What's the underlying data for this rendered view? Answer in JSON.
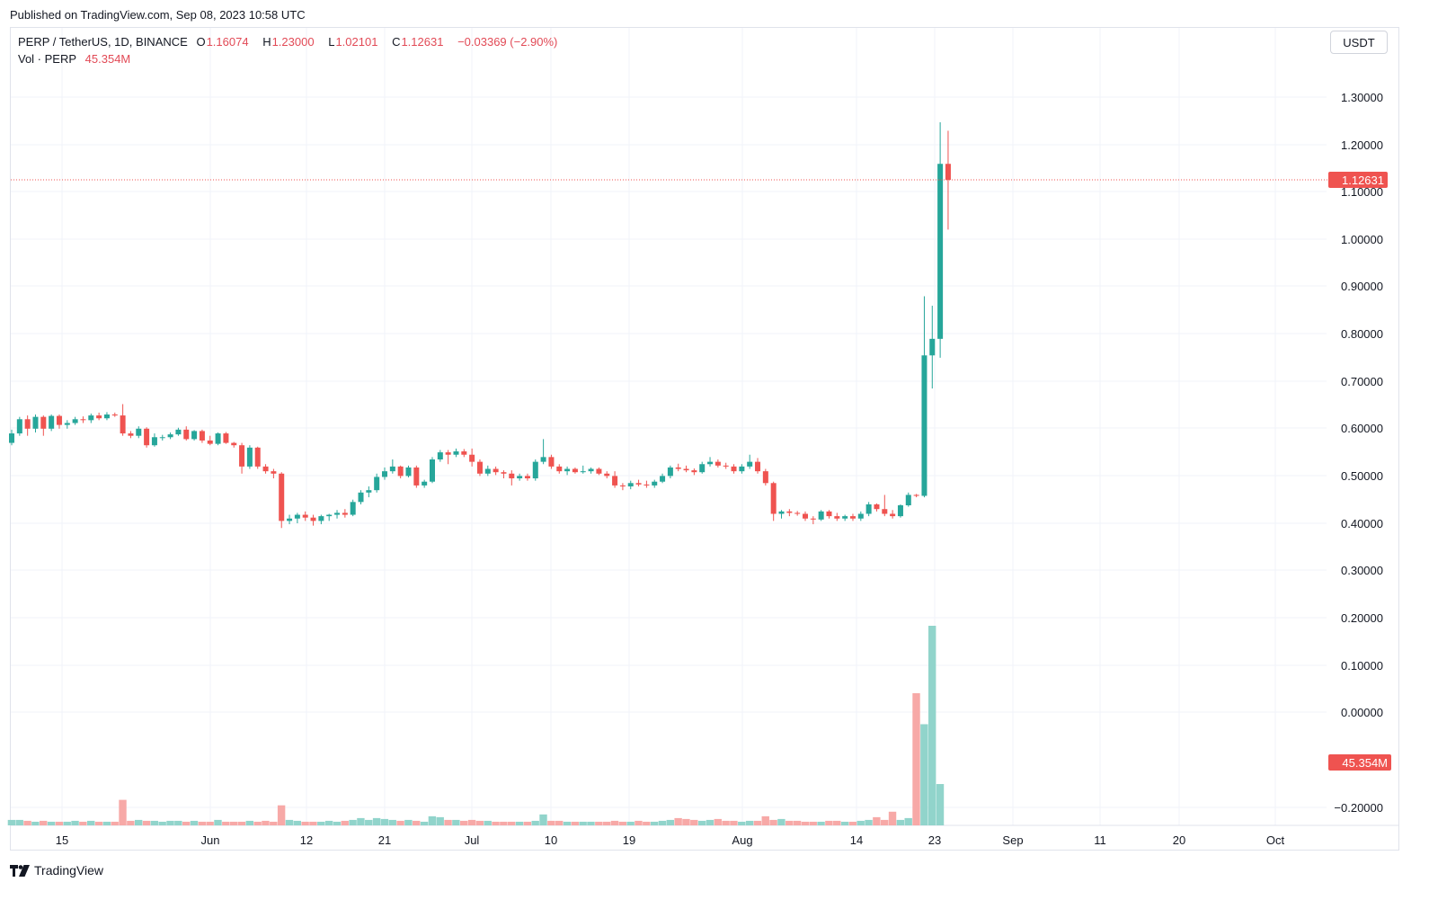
{
  "header": {
    "published": "Published on TradingView.com, Sep 08, 2023 10:58 UTC"
  },
  "legend": {
    "symbol": "PERP / TetherUS, 1D, BINANCE",
    "open_key": "O",
    "open": "1.16074",
    "high_key": "H",
    "high": "1.23000",
    "low_key": "L",
    "low": "1.02101",
    "close_key": "C",
    "close": "1.12631",
    "change": "−0.03369 (−2.90%)",
    "vol_label": "Vol · PERP",
    "vol_value": "45.354M"
  },
  "currency": "USDT",
  "brand": "TradingView",
  "colors": {
    "up": "#26a69a",
    "down": "#ef5350",
    "up_vol": "#91d4cb",
    "down_vol": "#f7a9a7",
    "last_badge": "#ef5350"
  },
  "chart_data": {
    "type": "candlestick",
    "timeframe": "1D",
    "y_ticks": [
      "1.30000",
      "1.20000",
      "1.10000",
      "1.00000",
      "0.90000",
      "0.80000",
      "0.70000",
      "0.60000",
      "0.50000",
      "0.40000",
      "0.30000",
      "0.20000",
      "0.10000",
      "0.00000",
      "−0.20000"
    ],
    "x_ticks": [
      "15",
      "Jun",
      "12",
      "21",
      "Jul",
      "10",
      "19",
      "Aug",
      "14",
      "23",
      "Sep",
      "11",
      "20",
      "Oct"
    ],
    "last_price": "1.12631",
    "last_volume": "45.354M",
    "ohlc": [
      [
        0.57,
        0.598,
        0.565,
        0.59
      ],
      [
        0.59,
        0.625,
        0.585,
        0.62
      ],
      [
        0.62,
        0.628,
        0.585,
        0.6
      ],
      [
        0.6,
        0.63,
        0.592,
        0.625
      ],
      [
        0.625,
        0.628,
        0.585,
        0.6
      ],
      [
        0.6,
        0.63,
        0.595,
        0.627
      ],
      [
        0.627,
        0.63,
        0.6,
        0.608
      ],
      [
        0.608,
        0.618,
        0.6,
        0.612
      ],
      [
        0.612,
        0.625,
        0.608,
        0.62
      ],
      [
        0.62,
        0.626,
        0.612,
        0.618
      ],
      [
        0.618,
        0.632,
        0.612,
        0.628
      ],
      [
        0.628,
        0.634,
        0.618,
        0.622
      ],
      [
        0.622,
        0.635,
        0.618,
        0.63
      ],
      [
        0.63,
        0.634,
        0.625,
        0.628
      ],
      [
        0.628,
        0.652,
        0.585,
        0.59
      ],
      [
        0.59,
        0.595,
        0.58,
        0.585
      ],
      [
        0.585,
        0.605,
        0.58,
        0.6
      ],
      [
        0.6,
        0.603,
        0.56,
        0.565
      ],
      [
        0.565,
        0.59,
        0.562,
        0.582
      ],
      [
        0.582,
        0.587,
        0.575,
        0.582
      ],
      [
        0.582,
        0.592,
        0.578,
        0.588
      ],
      [
        0.588,
        0.602,
        0.585,
        0.598
      ],
      [
        0.598,
        0.605,
        0.575,
        0.578
      ],
      [
        0.578,
        0.597,
        0.575,
        0.595
      ],
      [
        0.595,
        0.598,
        0.57,
        0.575
      ],
      [
        0.575,
        0.585,
        0.565,
        0.568
      ],
      [
        0.568,
        0.592,
        0.565,
        0.59
      ],
      [
        0.59,
        0.593,
        0.568,
        0.57
      ],
      [
        0.57,
        0.572,
        0.56,
        0.565
      ],
      [
        0.565,
        0.57,
        0.505,
        0.52
      ],
      [
        0.52,
        0.565,
        0.515,
        0.56
      ],
      [
        0.56,
        0.562,
        0.515,
        0.52
      ],
      [
        0.52,
        0.525,
        0.505,
        0.51
      ],
      [
        0.51,
        0.515,
        0.495,
        0.505
      ],
      [
        0.505,
        0.508,
        0.39,
        0.405
      ],
      [
        0.405,
        0.418,
        0.398,
        0.41
      ],
      [
        0.41,
        0.422,
        0.4,
        0.418
      ],
      [
        0.418,
        0.425,
        0.405,
        0.412
      ],
      [
        0.412,
        0.418,
        0.395,
        0.405
      ],
      [
        0.405,
        0.418,
        0.398,
        0.415
      ],
      [
        0.415,
        0.42,
        0.405,
        0.418
      ],
      [
        0.418,
        0.428,
        0.41,
        0.422
      ],
      [
        0.422,
        0.43,
        0.412,
        0.418
      ],
      [
        0.418,
        0.45,
        0.415,
        0.445
      ],
      [
        0.445,
        0.47,
        0.44,
        0.465
      ],
      [
        0.465,
        0.478,
        0.455,
        0.47
      ],
      [
        0.47,
        0.505,
        0.465,
        0.498
      ],
      [
        0.498,
        0.518,
        0.492,
        0.51
      ],
      [
        0.51,
        0.535,
        0.505,
        0.52
      ],
      [
        0.52,
        0.522,
        0.495,
        0.5
      ],
      [
        0.5,
        0.522,
        0.497,
        0.518
      ],
      [
        0.518,
        0.522,
        0.475,
        0.48
      ],
      [
        0.48,
        0.492,
        0.475,
        0.488
      ],
      [
        0.488,
        0.54,
        0.485,
        0.535
      ],
      [
        0.535,
        0.555,
        0.53,
        0.55
      ],
      [
        0.55,
        0.555,
        0.525,
        0.545
      ],
      [
        0.545,
        0.558,
        0.54,
        0.552
      ],
      [
        0.552,
        0.557,
        0.54,
        0.545
      ],
      [
        0.545,
        0.558,
        0.52,
        0.53
      ],
      [
        0.53,
        0.535,
        0.5,
        0.505
      ],
      [
        0.505,
        0.522,
        0.5,
        0.515
      ],
      [
        0.515,
        0.52,
        0.502,
        0.508
      ],
      [
        0.508,
        0.512,
        0.495,
        0.505
      ],
      [
        0.505,
        0.512,
        0.48,
        0.495
      ],
      [
        0.495,
        0.505,
        0.49,
        0.5
      ],
      [
        0.5,
        0.505,
        0.49,
        0.495
      ],
      [
        0.495,
        0.535,
        0.49,
        0.53
      ],
      [
        0.53,
        0.578,
        0.525,
        0.54
      ],
      [
        0.54,
        0.545,
        0.515,
        0.52
      ],
      [
        0.52,
        0.525,
        0.505,
        0.51
      ],
      [
        0.51,
        0.52,
        0.502,
        0.515
      ],
      [
        0.515,
        0.518,
        0.505,
        0.508
      ],
      [
        0.508,
        0.522,
        0.505,
        0.51
      ],
      [
        0.51,
        0.518,
        0.505,
        0.515
      ],
      [
        0.515,
        0.518,
        0.502,
        0.505
      ],
      [
        0.505,
        0.51,
        0.495,
        0.5
      ],
      [
        0.5,
        0.51,
        0.475,
        0.48
      ],
      [
        0.48,
        0.485,
        0.47,
        0.478
      ],
      [
        0.478,
        0.49,
        0.472,
        0.485
      ],
      [
        0.485,
        0.492,
        0.478,
        0.482
      ],
      [
        0.482,
        0.49,
        0.475,
        0.48
      ],
      [
        0.48,
        0.492,
        0.475,
        0.488
      ],
      [
        0.488,
        0.505,
        0.485,
        0.5
      ],
      [
        0.5,
        0.522,
        0.495,
        0.518
      ],
      [
        0.518,
        0.526,
        0.51,
        0.515
      ],
      [
        0.515,
        0.522,
        0.508,
        0.512
      ],
      [
        0.512,
        0.516,
        0.502,
        0.508
      ],
      [
        0.508,
        0.53,
        0.505,
        0.525
      ],
      [
        0.525,
        0.54,
        0.52,
        0.53
      ],
      [
        0.53,
        0.535,
        0.518,
        0.522
      ],
      [
        0.522,
        0.528,
        0.515,
        0.52
      ],
      [
        0.52,
        0.525,
        0.505,
        0.51
      ],
      [
        0.51,
        0.525,
        0.505,
        0.52
      ],
      [
        0.52,
        0.545,
        0.515,
        0.53
      ],
      [
        0.53,
        0.538,
        0.505,
        0.51
      ],
      [
        0.51,
        0.515,
        0.48,
        0.485
      ],
      [
        0.485,
        0.488,
        0.405,
        0.42
      ],
      [
        0.42,
        0.428,
        0.41,
        0.425
      ],
      [
        0.425,
        0.43,
        0.415,
        0.422
      ],
      [
        0.422,
        0.426,
        0.416,
        0.42
      ],
      [
        0.42,
        0.425,
        0.405,
        0.41
      ],
      [
        0.41,
        0.415,
        0.398,
        0.408
      ],
      [
        0.408,
        0.428,
        0.405,
        0.425
      ],
      [
        0.425,
        0.428,
        0.41,
        0.415
      ],
      [
        0.415,
        0.422,
        0.405,
        0.41
      ],
      [
        0.41,
        0.418,
        0.405,
        0.415
      ],
      [
        0.415,
        0.42,
        0.405,
        0.41
      ],
      [
        0.41,
        0.425,
        0.405,
        0.42
      ],
      [
        0.42,
        0.445,
        0.415,
        0.44
      ],
      [
        0.44,
        0.442,
        0.425,
        0.43
      ],
      [
        0.43,
        0.46,
        0.415,
        0.42
      ],
      [
        0.42,
        0.428,
        0.41,
        0.415
      ],
      [
        0.415,
        0.44,
        0.412,
        0.438
      ],
      [
        0.438,
        0.465,
        0.435,
        0.46
      ],
      [
        0.46,
        0.462,
        0.455,
        0.458
      ],
      [
        0.458,
        0.88,
        0.455,
        0.755
      ],
      [
        0.755,
        0.86,
        0.685,
        0.79
      ],
      [
        0.79,
        1.248,
        0.75,
        1.16
      ],
      [
        1.16,
        1.23,
        1.021,
        1.126
      ]
    ],
    "volume_sign": "last three bars dominate (about 145M, 111M, 219M) while the rest stay near 3–12M",
    "volume": [
      6,
      6,
      5,
      4,
      5,
      4,
      4,
      4,
      5,
      4,
      5,
      4,
      4,
      4,
      28,
      5,
      6,
      5,
      5,
      4,
      5,
      5,
      4,
      5,
      4,
      4,
      6,
      4,
      4,
      4,
      5,
      4,
      5,
      4,
      22,
      6,
      5,
      4,
      4,
      4,
      5,
      4,
      5,
      6,
      8,
      6,
      8,
      7,
      6,
      5,
      6,
      5,
      4,
      10,
      9,
      6,
      6,
      5,
      6,
      5,
      5,
      4,
      4,
      4,
      4,
      4,
      5,
      12,
      5,
      5,
      4,
      4,
      4,
      4,
      4,
      4,
      5,
      4,
      4,
      5,
      4,
      4,
      5,
      6,
      8,
      7,
      6,
      5,
      6,
      7,
      5,
      5,
      4,
      5,
      5,
      10,
      6,
      7,
      5,
      5,
      4,
      4,
      4,
      5,
      5,
      4,
      4,
      5,
      6,
      9,
      6,
      15,
      6,
      8,
      145,
      111,
      219,
      45.354
    ]
  }
}
